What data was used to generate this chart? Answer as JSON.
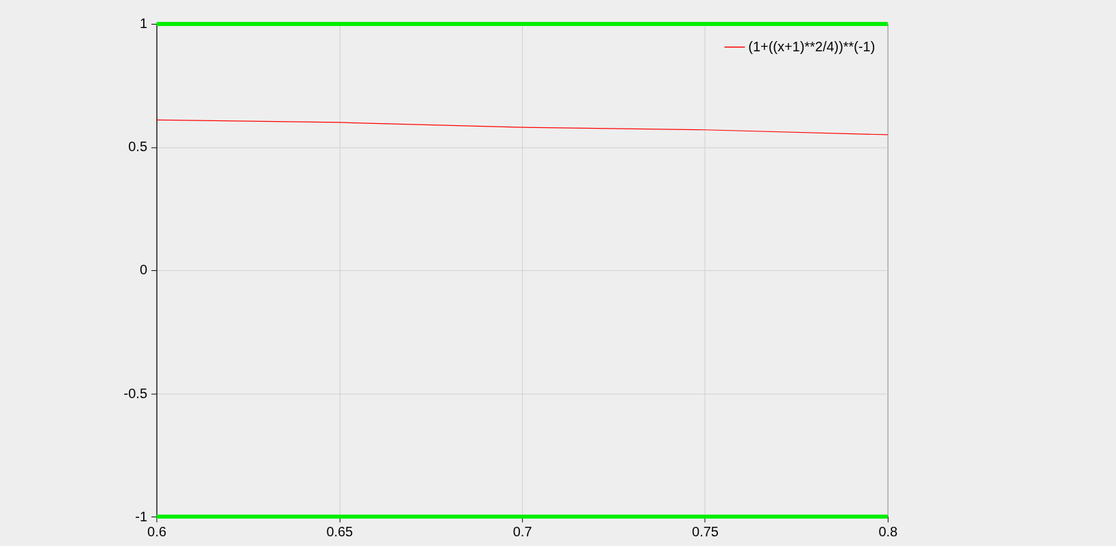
{
  "chart_data": {
    "type": "line",
    "x": [
      0.6,
      0.65,
      0.7,
      0.75,
      0.8
    ],
    "series": [
      {
        "name": "(1+((x+1)**2/4))**(-1)",
        "color": "#ff0000",
        "values": [
          0.61,
          0.6,
          0.58,
          0.57,
          0.55
        ]
      }
    ],
    "xlim": [
      0.6,
      0.8
    ],
    "xticks": [
      0.6,
      0.65,
      0.7,
      0.75,
      0.8
    ],
    "ylim": [
      -1,
      1
    ],
    "yticks": [
      -1,
      -0.5,
      0,
      0.5,
      1
    ],
    "grid": true,
    "legend": "top right",
    "line_style": "solid",
    "ref_lines": [
      {
        "axis": "y",
        "value": 1,
        "color": "#00ee00"
      },
      {
        "axis": "y",
        "value": -1,
        "color": "#00ee00"
      }
    ]
  }
}
